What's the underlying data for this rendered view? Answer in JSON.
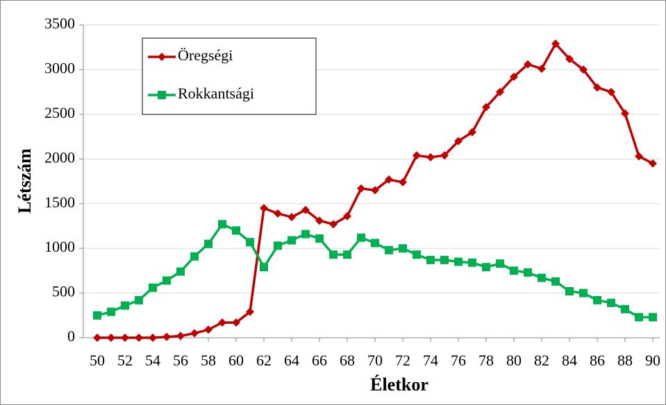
{
  "chart_data": {
    "type": "line",
    "xlabel": "Életkor",
    "ylabel": "Létszám",
    "x": [
      50,
      51,
      52,
      53,
      54,
      55,
      56,
      57,
      58,
      59,
      60,
      61,
      62,
      63,
      64,
      65,
      66,
      67,
      68,
      69,
      70,
      71,
      72,
      73,
      74,
      75,
      76,
      77,
      78,
      79,
      80,
      81,
      82,
      83,
      84,
      85,
      86,
      87,
      88,
      89,
      90
    ],
    "series": [
      {
        "name": "Öregségi",
        "color": "#c00000",
        "marker": "diamond",
        "values": [
          0,
          0,
          0,
          0,
          0,
          10,
          20,
          50,
          90,
          170,
          170,
          290,
          1450,
          1390,
          1350,
          1430,
          1310,
          1270,
          1360,
          1670,
          1650,
          1770,
          1740,
          2040,
          2020,
          2040,
          2200,
          2300,
          2580,
          2750,
          2920,
          3060,
          3010,
          3290,
          3120,
          3000,
          2800,
          2750,
          2510,
          2030,
          1950
        ]
      },
      {
        "name": "Rokkantsági",
        "color": "#00b050",
        "marker": "square",
        "values": [
          250,
          290,
          360,
          420,
          560,
          640,
          740,
          910,
          1050,
          1270,
          1200,
          1070,
          790,
          1030,
          1090,
          1160,
          1110,
          930,
          930,
          1120,
          1060,
          980,
          1000,
          930,
          870,
          870,
          850,
          840,
          790,
          830,
          750,
          730,
          670,
          630,
          520,
          500,
          420,
          390,
          320,
          230,
          230
        ]
      }
    ],
    "xlim": [
      49,
      90.5
    ],
    "xticks": [
      50,
      52,
      54,
      56,
      58,
      60,
      62,
      64,
      66,
      68,
      70,
      72,
      74,
      76,
      78,
      80,
      82,
      84,
      86,
      88,
      90
    ],
    "ylim": [
      0,
      3500
    ],
    "yticks": [
      0,
      500,
      1000,
      1500,
      2000,
      2500,
      3000,
      3500
    ],
    "grid": true,
    "legend": "upper left"
  }
}
